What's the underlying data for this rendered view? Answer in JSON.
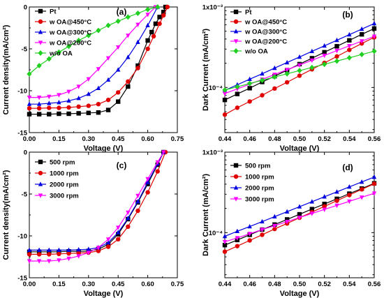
{
  "chart_data": [
    {
      "panel": "(a)",
      "type": "line",
      "xlabel": "Voltage (V)",
      "ylabel": "Current density(mA/cm²)",
      "xlim": [
        0.0,
        0.75
      ],
      "ylim": [
        -15,
        0
      ],
      "xticks": [
        0.0,
        0.15,
        0.3,
        0.45,
        0.6,
        0.75
      ],
      "xtick_labels": [
        "0.00",
        "0.15",
        "0.30",
        "0.45",
        "0.60",
        "0.75"
      ],
      "yticks": [
        0,
        -5,
        -10,
        -15
      ],
      "ytick_labels": [
        "0",
        "-5",
        "-10",
        "-15"
      ],
      "legend_position": "top-left",
      "series": [
        {
          "name": "Pt",
          "color": "#000000",
          "marker": "square",
          "x": [
            0.0,
            0.05,
            0.1,
            0.15,
            0.2,
            0.25,
            0.3,
            0.35,
            0.4,
            0.45,
            0.5,
            0.55,
            0.6,
            0.62,
            0.64,
            0.66,
            0.68,
            0.69
          ],
          "y": [
            -12.8,
            -12.8,
            -12.8,
            -12.75,
            -12.75,
            -12.7,
            -12.65,
            -12.6,
            -12.3,
            -11.3,
            -9.5,
            -7.0,
            -4.0,
            -3.0,
            -2.0,
            -1.2,
            -0.6,
            0
          ]
        },
        {
          "name": "w OA@450°C",
          "color": "#e00000",
          "marker": "circle",
          "x": [
            0.0,
            0.05,
            0.1,
            0.15,
            0.2,
            0.25,
            0.3,
            0.35,
            0.4,
            0.45,
            0.5,
            0.55,
            0.6,
            0.63,
            0.66,
            0.68,
            0.7
          ],
          "y": [
            -12.1,
            -12.1,
            -12.05,
            -12.05,
            -12.0,
            -11.9,
            -11.8,
            -11.6,
            -11.1,
            -10.2,
            -8.9,
            -7.3,
            -5.0,
            -3.5,
            -2.0,
            -1.0,
            0
          ]
        },
        {
          "name": "w OA@300°C",
          "color": "#0000e0",
          "marker": "triangle-up",
          "x": [
            0.0,
            0.05,
            0.1,
            0.15,
            0.2,
            0.25,
            0.3,
            0.35,
            0.4,
            0.45,
            0.5,
            0.55,
            0.6,
            0.65
          ],
          "y": [
            -11.6,
            -11.6,
            -11.5,
            -11.4,
            -11.2,
            -10.9,
            -10.4,
            -9.7,
            -8.7,
            -7.5,
            -6.0,
            -4.2,
            -2.2,
            0
          ]
        },
        {
          "name": "w OA@200°C",
          "color": "#ff00ff",
          "marker": "triangle-down",
          "x": [
            0.0,
            0.05,
            0.1,
            0.15,
            0.2,
            0.25,
            0.3,
            0.35,
            0.4,
            0.45,
            0.5,
            0.55,
            0.6,
            0.64
          ],
          "y": [
            -10.8,
            -10.8,
            -10.7,
            -10.5,
            -10.1,
            -9.5,
            -8.6,
            -7.4,
            -6.1,
            -4.8,
            -3.4,
            -2.1,
            -0.9,
            0
          ]
        },
        {
          "name": "w/o OA",
          "color": "#20d020",
          "marker": "diamond",
          "x": [
            0.0,
            0.05,
            0.1,
            0.15,
            0.2,
            0.25,
            0.3,
            0.35,
            0.4,
            0.45,
            0.5,
            0.55,
            0.6,
            0.65
          ],
          "y": [
            -8.0,
            -7.0,
            -6.2,
            -5.4,
            -4.7,
            -4.0,
            -3.4,
            -2.8,
            -2.2,
            -1.7,
            -1.2,
            -0.75,
            -0.3,
            0
          ]
        }
      ]
    },
    {
      "panel": "(b)",
      "type": "line",
      "xlabel": "Voltage (V)",
      "ylabel": "Dark Current (mA/cm²)",
      "xlim": [
        0.44,
        0.56
      ],
      "ylim": [
        2.75e-05,
        0.001
      ],
      "yscale": "log",
      "xticks": [
        0.44,
        0.46,
        0.48,
        0.5,
        0.52,
        0.54,
        0.56
      ],
      "xtick_labels": [
        "0.44",
        "0.46",
        "0.48",
        "0.50",
        "0.52",
        "0.54",
        "0.56"
      ],
      "yticks": [
        0.001,
        0.0001
      ],
      "ytick_labels": [
        "1x10⁻³",
        "10⁻⁴"
      ],
      "legend_position": "top-left",
      "series": [
        {
          "name": "Pt",
          "color": "#000000",
          "marker": "square",
          "x": [
            0.44,
            0.45,
            0.46,
            0.47,
            0.48,
            0.49,
            0.5,
            0.51,
            0.52,
            0.53,
            0.54,
            0.55,
            0.56
          ],
          "y": [
            7e-05,
            8.3e-05,
            9.8e-05,
            0.000117,
            0.000138,
            0.000164,
            0.000195,
            0.000231,
            0.000274,
            0.000325,
            0.000385,
            0.000457,
            0.00054
          ]
        },
        {
          "name": "w OA@450°C",
          "color": "#e00000",
          "marker": "circle",
          "x": [
            0.44,
            0.45,
            0.46,
            0.47,
            0.48,
            0.49,
            0.5,
            0.51,
            0.52,
            0.53,
            0.54,
            0.55,
            0.56
          ],
          "y": [
            4.6e-05,
            5.6e-05,
            6.7e-05,
            8e-05,
            9.7e-05,
            0.000116,
            0.00014,
            0.000168,
            0.000202,
            0.000243,
            0.000293,
            0.000352,
            0.00042
          ]
        },
        {
          "name": "w OA@300°C",
          "color": "#0000e0",
          "marker": "triangle-up",
          "x": [
            0.44,
            0.45,
            0.46,
            0.47,
            0.48,
            0.49,
            0.5,
            0.51,
            0.52,
            0.53,
            0.54,
            0.55,
            0.56
          ],
          "y": [
            9.2e-05,
            0.000108,
            0.000127,
            0.000148,
            0.000174,
            0.000204,
            0.000239,
            0.000281,
            0.000329,
            0.000386,
            0.000453,
            0.000531,
            0.000623
          ]
        },
        {
          "name": "w OA@200°C",
          "color": "#ff00ff",
          "marker": "triangle-down",
          "x": [
            0.44,
            0.45,
            0.46,
            0.47,
            0.48,
            0.49,
            0.5,
            0.51,
            0.52,
            0.53,
            0.54,
            0.55,
            0.56
          ],
          "y": [
            8.4e-05,
            9.6e-05,
            0.00011,
            0.000126,
            0.000145,
            0.000166,
            0.00019,
            0.000218,
            0.00025,
            0.000287,
            0.000329,
            0.000377,
            0.000432
          ]
        },
        {
          "name": "w/o OA",
          "color": "#20d020",
          "marker": "diamond",
          "x": [
            0.44,
            0.45,
            0.46,
            0.47,
            0.48,
            0.49,
            0.5,
            0.51,
            0.52,
            0.53,
            0.54,
            0.55,
            0.56
          ],
          "y": [
            9.3e-05,
            0.000102,
            0.000112,
            0.000123,
            0.000135,
            0.000148,
            0.000162,
            0.000177,
            0.000194,
            0.000213,
            0.000234,
            0.000257,
            0.000282
          ]
        }
      ]
    },
    {
      "panel": "(c)",
      "type": "line",
      "xlabel": "Voltage (V)",
      "ylabel": "Current density(mA/cm²)",
      "xlim": [
        0.0,
        0.75
      ],
      "ylim": [
        -15,
        0
      ],
      "xticks": [
        0.0,
        0.15,
        0.3,
        0.45,
        0.6,
        0.75
      ],
      "xtick_labels": [
        "0.00",
        "0.15",
        "0.30",
        "0.45",
        "0.60",
        "0.75"
      ],
      "yticks": [
        0,
        -5,
        -10,
        -15
      ],
      "ytick_labels": [
        "0",
        "-5",
        "-10",
        "-15"
      ],
      "legend_position": "top-left",
      "series": [
        {
          "name": "500  rpm",
          "color": "#000000",
          "marker": "square",
          "x": [
            0.0,
            0.05,
            0.1,
            0.15,
            0.2,
            0.25,
            0.3,
            0.35,
            0.4,
            0.45,
            0.5,
            0.55,
            0.6,
            0.65,
            0.68
          ],
          "y": [
            -11.9,
            -11.9,
            -11.9,
            -11.9,
            -11.85,
            -11.85,
            -11.8,
            -11.6,
            -11.0,
            -9.8,
            -8.0,
            -6.0,
            -3.8,
            -1.5,
            0
          ]
        },
        {
          "name": "1000  rpm",
          "color": "#e00000",
          "marker": "circle",
          "x": [
            0.0,
            0.05,
            0.1,
            0.15,
            0.2,
            0.25,
            0.3,
            0.35,
            0.4,
            0.45,
            0.5,
            0.55,
            0.6,
            0.65,
            0.69
          ],
          "y": [
            -12.2,
            -12.2,
            -12.2,
            -12.15,
            -12.1,
            -12.05,
            -12.0,
            -11.8,
            -11.3,
            -10.4,
            -8.9,
            -7.0,
            -4.8,
            -2.3,
            0
          ]
        },
        {
          "name": "2000  rpm",
          "color": "#0000e0",
          "marker": "triangle-up",
          "x": [
            0.0,
            0.05,
            0.1,
            0.15,
            0.2,
            0.25,
            0.3,
            0.35,
            0.4,
            0.45,
            0.5,
            0.55,
            0.6,
            0.65,
            0.68
          ],
          "y": [
            -11.7,
            -11.7,
            -11.7,
            -11.7,
            -11.7,
            -11.65,
            -11.6,
            -11.4,
            -10.8,
            -9.6,
            -7.9,
            -5.9,
            -3.6,
            -1.4,
            0
          ]
        },
        {
          "name": "3000  rpm",
          "color": "#ff00ff",
          "marker": "triangle-down",
          "x": [
            0.0,
            0.05,
            0.1,
            0.15,
            0.2,
            0.25,
            0.3,
            0.35,
            0.4,
            0.45,
            0.5,
            0.55,
            0.6,
            0.65,
            0.68
          ],
          "y": [
            -13.0,
            -13.0,
            -13.0,
            -12.9,
            -12.7,
            -12.4,
            -12.0,
            -11.4,
            -10.4,
            -9.0,
            -7.2,
            -5.2,
            -3.2,
            -1.2,
            0
          ]
        }
      ]
    },
    {
      "panel": "(d)",
      "type": "line",
      "xlabel": "Voltage (V)",
      "ylabel": "Dark Current (mA/cm²)",
      "xlim": [
        0.44,
        0.56
      ],
      "ylim": [
        2.75e-05,
        0.001
      ],
      "yscale": "log",
      "xticks": [
        0.44,
        0.46,
        0.48,
        0.5,
        0.52,
        0.54,
        0.56
      ],
      "xtick_labels": [
        "0.44",
        "0.46",
        "0.48",
        "0.50",
        "0.52",
        "0.54",
        "0.56"
      ],
      "yticks": [
        0.001,
        0.0001
      ],
      "ytick_labels": [
        "1x10⁻³",
        "10⁻⁴"
      ],
      "legend_position": "top-left",
      "series": [
        {
          "name": "500  rpm",
          "color": "#000000",
          "marker": "square",
          "x": [
            0.44,
            0.45,
            0.46,
            0.47,
            0.48,
            0.49,
            0.5,
            0.51,
            0.52,
            0.53,
            0.54,
            0.55,
            0.56
          ],
          "y": [
            7e-05,
            8.1e-05,
            9.4e-05,
            0.000109,
            0.000126,
            0.000146,
            0.000169,
            0.000196,
            0.000227,
            0.000263,
            0.000305,
            0.000353,
            0.00041
          ]
        },
        {
          "name": "1000  rpm",
          "color": "#e00000",
          "marker": "circle",
          "x": [
            0.44,
            0.45,
            0.46,
            0.47,
            0.48,
            0.49,
            0.5,
            0.51,
            0.52,
            0.53,
            0.54,
            0.55,
            0.56
          ],
          "y": [
            5.8e-05,
            6.8e-05,
            8e-05,
            9.4e-05,
            0.000111,
            0.00013,
            0.000153,
            0.00018,
            0.000212,
            0.000249,
            0.000293,
            0.000345,
            0.000405
          ]
        },
        {
          "name": "2000  rpm",
          "color": "#0000e0",
          "marker": "triangle-up",
          "x": [
            0.44,
            0.45,
            0.46,
            0.47,
            0.48,
            0.49,
            0.5,
            0.51,
            0.52,
            0.53,
            0.54,
            0.55,
            0.56
          ],
          "y": [
            9e-05,
            0.000104,
            0.000119,
            0.000137,
            0.000158,
            0.000182,
            0.00021,
            0.000242,
            0.000279,
            0.000321,
            0.00037,
            0.000426,
            0.00049
          ]
        },
        {
          "name": "3000  rpm",
          "color": "#ff00ff",
          "marker": "triangle-down",
          "x": [
            0.44,
            0.45,
            0.46,
            0.47,
            0.48,
            0.49,
            0.5,
            0.51,
            0.52,
            0.53,
            0.54,
            0.55,
            0.56
          ],
          "y": [
            7.7e-05,
            8.6e-05,
            9.7e-05,
            0.000109,
            0.000122,
            0.000137,
            0.000154,
            0.000173,
            0.000194,
            0.000218,
            0.000245,
            0.000275,
            0.000308
          ]
        }
      ]
    }
  ]
}
